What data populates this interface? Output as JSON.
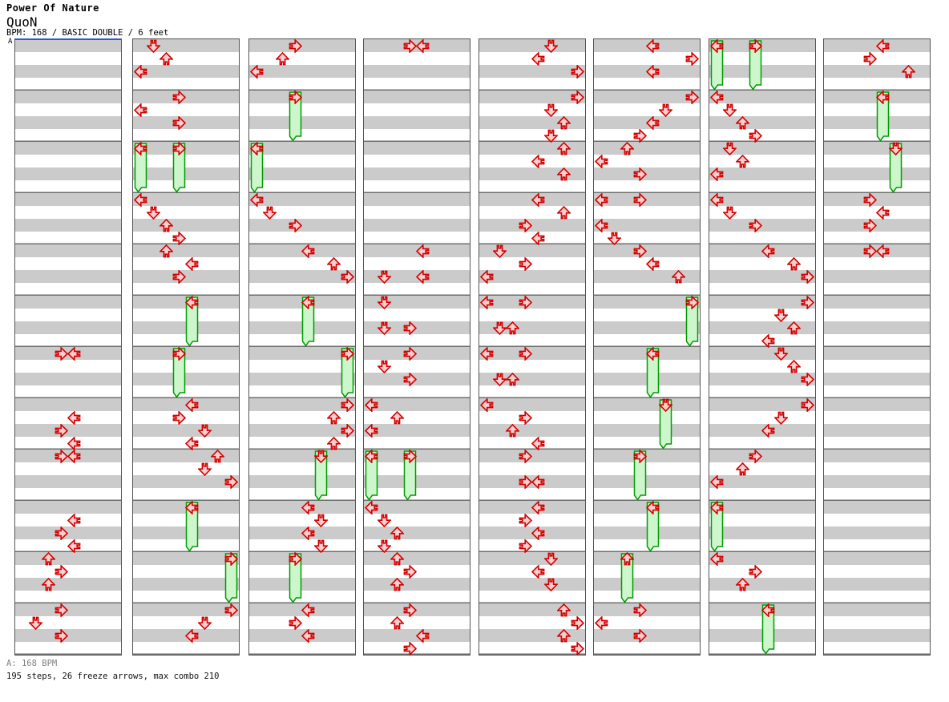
{
  "header": {
    "title": "Power Of Nature",
    "artist": "QuoN",
    "info": "BPM: 168 / BASIC DOUBLE / 6 feet"
  },
  "marker": {
    "label": "A"
  },
  "footer": {
    "bpm_line": "A: 168 BPM",
    "summary_line": "195 steps, 26 freeze arrows, max combo 210"
  },
  "colors": {
    "arrow_fill": "#f9cfcf",
    "arrow_stroke": "#d40000",
    "freeze_fill": "#cdf6cd",
    "freeze_stroke": "#009b00",
    "stripe_gray": "#cbcbcb",
    "measure_line": "#6e6e6e",
    "panel_border": "#555555",
    "marker_line_blue": "#2d59cf",
    "footer_gray": "#808080"
  },
  "chart_data": {
    "type": "table",
    "title": "Power Of Nature",
    "artist": "QuoN",
    "bpm": 168,
    "difficulty": "BASIC DOUBLE",
    "feet": 6,
    "steps": 195,
    "freeze_arrows": 26,
    "max_combo": 210,
    "lanes": 8,
    "lane_directions": [
      "left",
      "down",
      "up",
      "right",
      "left",
      "down",
      "up",
      "right"
    ],
    "rows_per_measure": 4,
    "measures_per_panel": 12,
    "panels": [
      {
        "notes": [
          [
            24,
            3
          ],
          [
            24,
            4
          ],
          [
            29,
            4
          ],
          [
            30,
            3
          ],
          [
            31,
            4
          ],
          [
            32,
            3
          ],
          [
            32,
            4
          ],
          [
            37,
            4
          ],
          [
            38,
            3
          ],
          [
            39,
            4
          ],
          [
            40,
            2
          ],
          [
            41,
            3
          ],
          [
            42,
            2
          ],
          [
            44,
            3
          ],
          [
            45,
            1
          ],
          [
            46,
            3
          ]
        ],
        "freezes": []
      },
      {
        "notes": [
          [
            0,
            1
          ],
          [
            1,
            2
          ],
          [
            2,
            0
          ],
          [
            4,
            3
          ],
          [
            5,
            0
          ],
          [
            6,
            3
          ],
          [
            12,
            0
          ],
          [
            13,
            1
          ],
          [
            14,
            2
          ],
          [
            15,
            3
          ],
          [
            16,
            2
          ],
          [
            17,
            4
          ],
          [
            18,
            3
          ],
          [
            28,
            4
          ],
          [
            29,
            3
          ],
          [
            30,
            5
          ],
          [
            31,
            4
          ],
          [
            32,
            6
          ],
          [
            33,
            5
          ],
          [
            34,
            7
          ],
          [
            44,
            7
          ],
          [
            45,
            5
          ],
          [
            46,
            4
          ]
        ],
        "freezes": [
          [
            8,
            0,
            4
          ],
          [
            8,
            3,
            4
          ],
          [
            20,
            4,
            4
          ],
          [
            24,
            3,
            4
          ],
          [
            36,
            4,
            4
          ],
          [
            40,
            7,
            4
          ]
        ]
      },
      {
        "notes": [
          [
            0,
            3
          ],
          [
            1,
            2
          ],
          [
            2,
            0
          ],
          [
            12,
            0
          ],
          [
            13,
            1
          ],
          [
            14,
            3
          ],
          [
            16,
            4
          ],
          [
            17,
            6
          ],
          [
            18,
            7
          ],
          [
            28,
            7
          ],
          [
            29,
            6
          ],
          [
            30,
            7
          ],
          [
            31,
            6
          ],
          [
            36,
            4
          ],
          [
            37,
            5
          ],
          [
            38,
            4
          ],
          [
            39,
            5
          ],
          [
            44,
            4
          ],
          [
            45,
            3
          ],
          [
            46,
            4
          ]
        ],
        "freezes": [
          [
            4,
            3,
            4
          ],
          [
            8,
            0,
            4
          ],
          [
            20,
            4,
            4
          ],
          [
            24,
            7,
            4
          ],
          [
            32,
            5,
            4
          ],
          [
            40,
            3,
            4
          ]
        ]
      },
      {
        "notes": [
          [
            0,
            3
          ],
          [
            0,
            4
          ],
          [
            16,
            4
          ],
          [
            18,
            1
          ],
          [
            18,
            4
          ],
          [
            20,
            1
          ],
          [
            22,
            1
          ],
          [
            22,
            3
          ],
          [
            24,
            3
          ],
          [
            25,
            1
          ],
          [
            26,
            3
          ],
          [
            28,
            0
          ],
          [
            29,
            2
          ],
          [
            30,
            0
          ],
          [
            36,
            0
          ],
          [
            37,
            1
          ],
          [
            38,
            2
          ],
          [
            39,
            1
          ],
          [
            40,
            2
          ],
          [
            41,
            3
          ],
          [
            42,
            2
          ],
          [
            44,
            3
          ],
          [
            45,
            2
          ],
          [
            46,
            4
          ],
          [
            47,
            3
          ]
        ],
        "freezes": [
          [
            32,
            0,
            4
          ],
          [
            32,
            3,
            4
          ]
        ]
      },
      {
        "notes": [
          [
            0,
            5
          ],
          [
            1,
            4
          ],
          [
            2,
            7
          ],
          [
            4,
            7
          ],
          [
            5,
            5
          ],
          [
            6,
            6
          ],
          [
            7,
            5
          ],
          [
            8,
            6
          ],
          [
            9,
            4
          ],
          [
            10,
            6
          ],
          [
            12,
            4
          ],
          [
            13,
            6
          ],
          [
            14,
            3
          ],
          [
            15,
            4
          ],
          [
            16,
            1
          ],
          [
            17,
            3
          ],
          [
            18,
            0
          ],
          [
            20,
            0
          ],
          [
            20,
            3
          ],
          [
            22,
            1
          ],
          [
            22,
            2
          ],
          [
            24,
            0
          ],
          [
            24,
            3
          ],
          [
            26,
            1
          ],
          [
            26,
            2
          ],
          [
            28,
            0
          ],
          [
            29,
            3
          ],
          [
            30,
            2
          ],
          [
            31,
            4
          ],
          [
            32,
            3
          ],
          [
            34,
            3
          ],
          [
            34,
            4
          ],
          [
            36,
            4
          ],
          [
            37,
            3
          ],
          [
            38,
            4
          ],
          [
            39,
            3
          ],
          [
            40,
            5
          ],
          [
            41,
            4
          ],
          [
            42,
            5
          ],
          [
            44,
            6
          ],
          [
            45,
            7
          ],
          [
            46,
            6
          ],
          [
            47,
            7
          ]
        ],
        "freezes": []
      },
      {
        "notes": [
          [
            0,
            4
          ],
          [
            1,
            7
          ],
          [
            2,
            4
          ],
          [
            4,
            7
          ],
          [
            5,
            5
          ],
          [
            6,
            4
          ],
          [
            7,
            3
          ],
          [
            8,
            2
          ],
          [
            9,
            0
          ],
          [
            10,
            3
          ],
          [
            12,
            0
          ],
          [
            12,
            3
          ],
          [
            14,
            0
          ],
          [
            15,
            1
          ],
          [
            16,
            3
          ],
          [
            17,
            4
          ],
          [
            18,
            6
          ],
          [
            44,
            3
          ],
          [
            45,
            0
          ],
          [
            46,
            3
          ]
        ],
        "freezes": [
          [
            20,
            7,
            4
          ],
          [
            24,
            4,
            4
          ],
          [
            28,
            5,
            4
          ],
          [
            32,
            3,
            4
          ],
          [
            36,
            4,
            4
          ],
          [
            40,
            2,
            4
          ]
        ]
      },
      {
        "notes": [
          [
            4,
            0
          ],
          [
            5,
            1
          ],
          [
            6,
            2
          ],
          [
            7,
            3
          ],
          [
            8,
            1
          ],
          [
            9,
            2
          ],
          [
            10,
            0
          ],
          [
            12,
            0
          ],
          [
            13,
            1
          ],
          [
            14,
            3
          ],
          [
            16,
            4
          ],
          [
            17,
            6
          ],
          [
            18,
            7
          ],
          [
            20,
            7
          ],
          [
            21,
            5
          ],
          [
            22,
            6
          ],
          [
            23,
            4
          ],
          [
            24,
            5
          ],
          [
            25,
            6
          ],
          [
            26,
            7
          ],
          [
            28,
            7
          ],
          [
            29,
            5
          ],
          [
            30,
            4
          ],
          [
            32,
            3
          ],
          [
            33,
            2
          ],
          [
            34,
            0
          ],
          [
            40,
            0
          ],
          [
            41,
            3
          ],
          [
            42,
            2
          ]
        ],
        "freezes": [
          [
            0,
            0,
            4
          ],
          [
            0,
            3,
            4
          ],
          [
            36,
            0,
            4
          ],
          [
            44,
            4,
            4
          ]
        ]
      },
      {
        "notes": [
          [
            0,
            4
          ],
          [
            1,
            3
          ],
          [
            2,
            6
          ],
          [
            12,
            3
          ],
          [
            13,
            4
          ],
          [
            14,
            3
          ],
          [
            16,
            3
          ],
          [
            16,
            4
          ]
        ],
        "freezes": [
          [
            4,
            4,
            4
          ],
          [
            8,
            5,
            4
          ]
        ]
      }
    ]
  }
}
